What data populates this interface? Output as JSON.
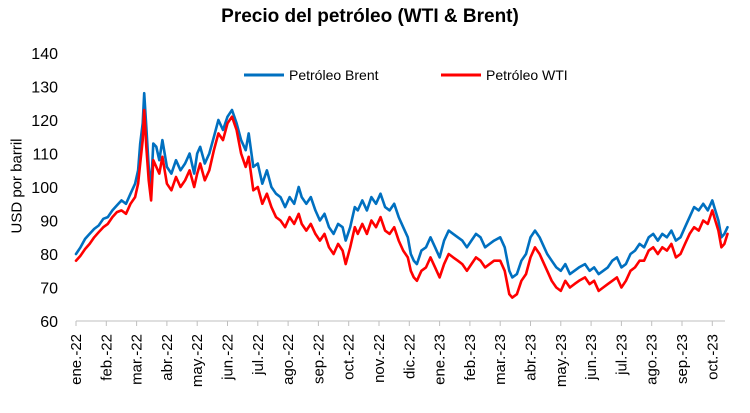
{
  "chart_data": {
    "type": "line",
    "title": "Precio del petróleo (WTI & Brent)",
    "ylabel": "USD por barril",
    "xlabel": "",
    "ylim": [
      60,
      140
    ],
    "yticks": [
      "60",
      "70",
      "80",
      "90",
      "100",
      "110",
      "120",
      "130",
      "140"
    ],
    "xticks": [
      "ene.-22",
      "feb.-22",
      "mar.-22",
      "abr.-22",
      "may.-22",
      "jun.-22",
      "jul.-22",
      "ago.-22",
      "sep.-22",
      "oct.-22",
      "nov.-22",
      "dic.-22",
      "ene.-23",
      "feb.-23",
      "mar.-23",
      "abr.-23",
      "may.-23",
      "jun.-23",
      "jul.-23",
      "ago.-23",
      "sep.-23",
      "oct.-23"
    ],
    "legend_position": "top",
    "grid": false,
    "x_unit": "approximate month index (0 = start of ene.-22)",
    "series": [
      {
        "name": "Petróleo Brent",
        "color": "#0070C0",
        "points": [
          [
            0.0,
            80.0
          ],
          [
            0.15,
            82.0
          ],
          [
            0.3,
            84.5
          ],
          [
            0.45,
            86.0
          ],
          [
            0.6,
            87.5
          ],
          [
            0.75,
            88.5
          ],
          [
            0.9,
            90.5
          ],
          [
            1.05,
            91.0
          ],
          [
            1.2,
            93.0
          ],
          [
            1.35,
            94.5
          ],
          [
            1.5,
            96.0
          ],
          [
            1.65,
            95.0
          ],
          [
            1.8,
            98.0
          ],
          [
            1.95,
            101.0
          ],
          [
            2.05,
            105.0
          ],
          [
            2.12,
            113.0
          ],
          [
            2.2,
            119.0
          ],
          [
            2.25,
            128.0
          ],
          [
            2.32,
            118.0
          ],
          [
            2.4,
            106.0
          ],
          [
            2.48,
            100.0
          ],
          [
            2.55,
            113.0
          ],
          [
            2.65,
            112.0
          ],
          [
            2.75,
            108.0
          ],
          [
            2.85,
            114.0
          ],
          [
            3.0,
            106.0
          ],
          [
            3.15,
            104.0
          ],
          [
            3.3,
            108.0
          ],
          [
            3.45,
            105.0
          ],
          [
            3.6,
            107.0
          ],
          [
            3.75,
            110.0
          ],
          [
            3.9,
            104.0
          ],
          [
            4.0,
            110.0
          ],
          [
            4.1,
            112.0
          ],
          [
            4.25,
            107.0
          ],
          [
            4.4,
            110.0
          ],
          [
            4.55,
            115.0
          ],
          [
            4.7,
            120.0
          ],
          [
            4.85,
            117.0
          ],
          [
            5.0,
            121.0
          ],
          [
            5.15,
            123.0
          ],
          [
            5.3,
            119.0
          ],
          [
            5.45,
            114.0
          ],
          [
            5.6,
            111.0
          ],
          [
            5.7,
            116.0
          ],
          [
            5.85,
            106.0
          ],
          [
            6.0,
            107.0
          ],
          [
            6.15,
            101.0
          ],
          [
            6.3,
            105.0
          ],
          [
            6.45,
            100.0
          ],
          [
            6.6,
            98.0
          ],
          [
            6.75,
            97.0
          ],
          [
            6.9,
            94.0
          ],
          [
            7.05,
            97.0
          ],
          [
            7.2,
            95.0
          ],
          [
            7.35,
            100.0
          ],
          [
            7.45,
            97.0
          ],
          [
            7.6,
            95.0
          ],
          [
            7.75,
            97.0
          ],
          [
            7.9,
            93.0
          ],
          [
            8.05,
            90.0
          ],
          [
            8.2,
            92.0
          ],
          [
            8.35,
            88.0
          ],
          [
            8.5,
            86.0
          ],
          [
            8.65,
            89.0
          ],
          [
            8.8,
            88.0
          ],
          [
            8.9,
            84.0
          ],
          [
            9.05,
            88.0
          ],
          [
            9.2,
            94.0
          ],
          [
            9.3,
            93.0
          ],
          [
            9.45,
            96.0
          ],
          [
            9.6,
            93.0
          ],
          [
            9.75,
            97.0
          ],
          [
            9.9,
            95.0
          ],
          [
            10.05,
            98.0
          ],
          [
            10.2,
            94.0
          ],
          [
            10.35,
            93.0
          ],
          [
            10.5,
            95.0
          ],
          [
            10.65,
            91.0
          ],
          [
            10.8,
            88.0
          ],
          [
            10.95,
            85.0
          ],
          [
            11.05,
            80.0
          ],
          [
            11.15,
            78.0
          ],
          [
            11.25,
            77.0
          ],
          [
            11.4,
            81.0
          ],
          [
            11.55,
            82.0
          ],
          [
            11.7,
            85.0
          ],
          [
            11.85,
            82.0
          ],
          [
            12.0,
            79.0
          ],
          [
            12.15,
            84.0
          ],
          [
            12.3,
            87.0
          ],
          [
            12.45,
            86.0
          ],
          [
            12.6,
            85.0
          ],
          [
            12.75,
            84.0
          ],
          [
            12.9,
            82.0
          ],
          [
            13.05,
            84.0
          ],
          [
            13.2,
            86.0
          ],
          [
            13.35,
            85.0
          ],
          [
            13.5,
            82.0
          ],
          [
            13.65,
            83.0
          ],
          [
            13.8,
            84.0
          ],
          [
            14.0,
            85.0
          ],
          [
            14.15,
            82.0
          ],
          [
            14.3,
            75.0
          ],
          [
            14.4,
            73.0
          ],
          [
            14.55,
            74.0
          ],
          [
            14.7,
            78.0
          ],
          [
            14.85,
            80.0
          ],
          [
            15.0,
            85.0
          ],
          [
            15.15,
            87.0
          ],
          [
            15.3,
            85.0
          ],
          [
            15.4,
            83.0
          ],
          [
            15.55,
            80.0
          ],
          [
            15.7,
            78.0
          ],
          [
            15.85,
            76.0
          ],
          [
            16.0,
            75.0
          ],
          [
            16.15,
            77.0
          ],
          [
            16.3,
            74.0
          ],
          [
            16.45,
            75.0
          ],
          [
            16.6,
            76.0
          ],
          [
            16.8,
            77.0
          ],
          [
            16.95,
            75.0
          ],
          [
            17.1,
            76.0
          ],
          [
            17.25,
            74.0
          ],
          [
            17.4,
            75.0
          ],
          [
            17.55,
            76.0
          ],
          [
            17.7,
            78.0
          ],
          [
            17.85,
            79.0
          ],
          [
            18.0,
            76.0
          ],
          [
            18.15,
            77.0
          ],
          [
            18.3,
            80.0
          ],
          [
            18.45,
            81.0
          ],
          [
            18.6,
            83.0
          ],
          [
            18.75,
            82.0
          ],
          [
            18.9,
            85.0
          ],
          [
            19.05,
            86.0
          ],
          [
            19.2,
            84.0
          ],
          [
            19.35,
            86.0
          ],
          [
            19.5,
            85.0
          ],
          [
            19.65,
            87.0
          ],
          [
            19.8,
            84.0
          ],
          [
            19.95,
            85.0
          ],
          [
            20.1,
            88.0
          ],
          [
            20.25,
            91.0
          ],
          [
            20.4,
            94.0
          ],
          [
            20.55,
            93.0
          ],
          [
            20.7,
            95.0
          ],
          [
            20.85,
            93.0
          ],
          [
            21.0,
            96.0
          ],
          [
            21.1,
            93.0
          ],
          [
            21.2,
            90.0
          ],
          [
            21.3,
            85.0
          ],
          [
            21.4,
            86.0
          ],
          [
            21.5,
            88.0
          ]
        ]
      },
      {
        "name": "Petróleo WTI",
        "color": "#FF0000",
        "points": [
          [
            0.0,
            78.0
          ],
          [
            0.15,
            79.5
          ],
          [
            0.3,
            81.5
          ],
          [
            0.45,
            83.0
          ],
          [
            0.6,
            85.0
          ],
          [
            0.75,
            86.5
          ],
          [
            0.9,
            88.0
          ],
          [
            1.05,
            89.0
          ],
          [
            1.2,
            91.0
          ],
          [
            1.35,
            92.5
          ],
          [
            1.5,
            93.0
          ],
          [
            1.65,
            92.0
          ],
          [
            1.8,
            95.0
          ],
          [
            1.95,
            97.0
          ],
          [
            2.05,
            101.0
          ],
          [
            2.12,
            107.0
          ],
          [
            2.2,
            114.0
          ],
          [
            2.25,
            123.0
          ],
          [
            2.32,
            112.0
          ],
          [
            2.4,
            102.0
          ],
          [
            2.48,
            96.0
          ],
          [
            2.55,
            108.0
          ],
          [
            2.65,
            106.0
          ],
          [
            2.75,
            104.0
          ],
          [
            2.85,
            109.0
          ],
          [
            3.0,
            101.0
          ],
          [
            3.15,
            99.0
          ],
          [
            3.3,
            103.0
          ],
          [
            3.45,
            100.0
          ],
          [
            3.6,
            102.0
          ],
          [
            3.75,
            105.0
          ],
          [
            3.9,
            100.0
          ],
          [
            4.0,
            104.0
          ],
          [
            4.1,
            107.0
          ],
          [
            4.25,
            102.0
          ],
          [
            4.4,
            105.0
          ],
          [
            4.55,
            111.0
          ],
          [
            4.7,
            116.0
          ],
          [
            4.85,
            114.0
          ],
          [
            5.0,
            119.0
          ],
          [
            5.15,
            121.0
          ],
          [
            5.3,
            117.0
          ],
          [
            5.45,
            110.0
          ],
          [
            5.6,
            106.0
          ],
          [
            5.7,
            109.0
          ],
          [
            5.85,
            99.0
          ],
          [
            6.0,
            100.0
          ],
          [
            6.15,
            95.0
          ],
          [
            6.3,
            98.0
          ],
          [
            6.45,
            94.0
          ],
          [
            6.6,
            91.0
          ],
          [
            6.75,
            90.0
          ],
          [
            6.9,
            88.0
          ],
          [
            7.05,
            91.0
          ],
          [
            7.2,
            89.0
          ],
          [
            7.35,
            92.0
          ],
          [
            7.45,
            89.0
          ],
          [
            7.6,
            87.0
          ],
          [
            7.75,
            89.0
          ],
          [
            7.9,
            86.0
          ],
          [
            8.05,
            84.0
          ],
          [
            8.2,
            86.0
          ],
          [
            8.35,
            82.0
          ],
          [
            8.5,
            80.0
          ],
          [
            8.65,
            83.0
          ],
          [
            8.8,
            81.0
          ],
          [
            8.9,
            77.0
          ],
          [
            9.05,
            82.0
          ],
          [
            9.2,
            88.0
          ],
          [
            9.3,
            86.0
          ],
          [
            9.45,
            89.0
          ],
          [
            9.6,
            86.0
          ],
          [
            9.75,
            90.0
          ],
          [
            9.9,
            88.0
          ],
          [
            10.05,
            91.0
          ],
          [
            10.2,
            87.0
          ],
          [
            10.35,
            86.0
          ],
          [
            10.5,
            88.0
          ],
          [
            10.65,
            84.0
          ],
          [
            10.8,
            81.0
          ],
          [
            10.95,
            79.0
          ],
          [
            11.05,
            75.0
          ],
          [
            11.15,
            73.0
          ],
          [
            11.25,
            72.0
          ],
          [
            11.4,
            75.0
          ],
          [
            11.55,
            76.0
          ],
          [
            11.7,
            79.0
          ],
          [
            11.85,
            76.0
          ],
          [
            12.0,
            73.0
          ],
          [
            12.15,
            77.0
          ],
          [
            12.3,
            80.0
          ],
          [
            12.45,
            79.0
          ],
          [
            12.6,
            78.0
          ],
          [
            12.75,
            77.0
          ],
          [
            12.9,
            75.0
          ],
          [
            13.05,
            77.0
          ],
          [
            13.2,
            79.0
          ],
          [
            13.35,
            78.0
          ],
          [
            13.5,
            76.0
          ],
          [
            13.65,
            77.0
          ],
          [
            13.8,
            78.0
          ],
          [
            14.0,
            78.0
          ],
          [
            14.15,
            75.0
          ],
          [
            14.3,
            68.0
          ],
          [
            14.4,
            67.0
          ],
          [
            14.55,
            68.0
          ],
          [
            14.7,
            72.0
          ],
          [
            14.85,
            74.0
          ],
          [
            15.0,
            79.0
          ],
          [
            15.15,
            82.0
          ],
          [
            15.3,
            80.0
          ],
          [
            15.4,
            78.0
          ],
          [
            15.55,
            75.0
          ],
          [
            15.7,
            72.0
          ],
          [
            15.85,
            70.0
          ],
          [
            16.0,
            69.0
          ],
          [
            16.15,
            72.0
          ],
          [
            16.3,
            70.0
          ],
          [
            16.45,
            71.0
          ],
          [
            16.6,
            72.0
          ],
          [
            16.8,
            73.0
          ],
          [
            16.95,
            71.0
          ],
          [
            17.1,
            72.0
          ],
          [
            17.25,
            69.0
          ],
          [
            17.4,
            70.0
          ],
          [
            17.55,
            71.0
          ],
          [
            17.7,
            72.0
          ],
          [
            17.85,
            73.0
          ],
          [
            18.0,
            70.0
          ],
          [
            18.15,
            72.0
          ],
          [
            18.3,
            75.0
          ],
          [
            18.45,
            76.0
          ],
          [
            18.6,
            78.0
          ],
          [
            18.75,
            78.0
          ],
          [
            18.9,
            81.0
          ],
          [
            19.05,
            82.0
          ],
          [
            19.2,
            80.0
          ],
          [
            19.35,
            82.0
          ],
          [
            19.5,
            81.0
          ],
          [
            19.65,
            83.0
          ],
          [
            19.8,
            79.0
          ],
          [
            19.95,
            80.0
          ],
          [
            20.1,
            83.0
          ],
          [
            20.25,
            86.0
          ],
          [
            20.4,
            88.0
          ],
          [
            20.55,
            87.0
          ],
          [
            20.7,
            90.0
          ],
          [
            20.85,
            89.0
          ],
          [
            21.0,
            93.0
          ],
          [
            21.1,
            90.0
          ],
          [
            21.2,
            87.0
          ],
          [
            21.3,
            82.0
          ],
          [
            21.4,
            83.0
          ],
          [
            21.5,
            86.0
          ]
        ]
      }
    ]
  }
}
